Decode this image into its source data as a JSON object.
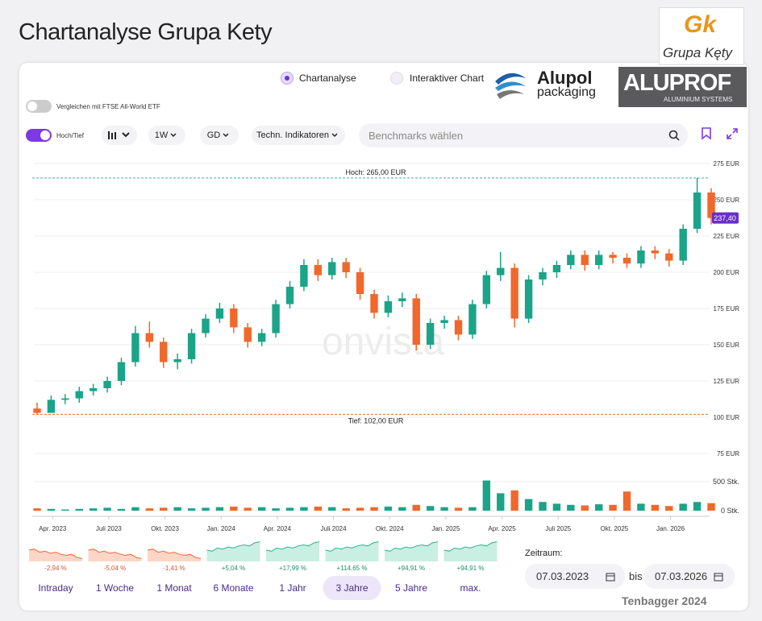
{
  "header": {
    "title": "Chartanalyse Grupa Kety"
  },
  "logos": {
    "gk_mark": "Gk",
    "gk_name": "Grupa Kęty",
    "alupol": "Alupol",
    "alupol_sub": "packaging",
    "aluprof": "ALUPROF",
    "aluprof_sub": "ALUMINIUM SYSTEMS"
  },
  "controls": {
    "radio_1": "Chartanalyse",
    "radio_2": "Interaktiver Chart",
    "compare": "Vergleichen mit FTSE All-World ETF",
    "high_low": "Hoch/Tief",
    "interval": "1W",
    "average": "GD",
    "indicators": "Techn. Indikatoren",
    "search": "Benchmarks wählen"
  },
  "chart_data": {
    "type": "candlestick",
    "watermark": "onvista",
    "x": [
      0,
      0.75,
      1.5,
      2.25,
      3,
      3.75,
      4.5,
      5.25,
      6,
      6.75,
      7.5,
      8.25,
      9,
      9.75,
      10.5,
      11.25,
      12,
      12.75,
      13.5,
      14.25,
      15,
      15.75,
      16.5,
      17.25,
      18,
      18.75,
      19.5,
      20.25,
      21,
      21.75,
      22.5,
      23.25,
      24,
      24.75,
      25.5,
      26.25,
      27,
      27.75,
      28.5,
      29.25,
      30,
      30.75,
      31.5,
      32.25,
      33,
      33.75,
      34.5,
      35.25,
      36
    ],
    "open": [
      106,
      103,
      112,
      113,
      118,
      120,
      125,
      138,
      158,
      152,
      138,
      140,
      158,
      168,
      175,
      162,
      152,
      158,
      178,
      190,
      205,
      198,
      207,
      200,
      185,
      172,
      180,
      182,
      150,
      165,
      167,
      157,
      178,
      198,
      203,
      168,
      195,
      200,
      205,
      212,
      205,
      212,
      210,
      206,
      215,
      213,
      208,
      230,
      255
    ],
    "high": [
      110,
      115,
      116,
      121,
      123,
      128,
      141,
      163,
      166,
      155,
      144,
      161,
      171,
      179,
      178,
      165,
      161,
      181,
      194,
      209,
      209,
      210,
      210,
      203,
      188,
      184,
      186,
      185,
      168,
      170,
      170,
      181,
      201,
      214,
      206,
      198,
      203,
      208,
      215,
      215,
      215,
      214,
      213,
      218,
      218,
      216,
      233,
      265,
      258
    ],
    "low": [
      102,
      103,
      109,
      110,
      115,
      117,
      122,
      135,
      148,
      134,
      133,
      137,
      155,
      165,
      158,
      148,
      149,
      155,
      175,
      187,
      194,
      195,
      196,
      181,
      168,
      169,
      176,
      146,
      147,
      161,
      153,
      154,
      175,
      194,
      162,
      165,
      191,
      196,
      202,
      201,
      202,
      206,
      203,
      203,
      209,
      204,
      205,
      227,
      233
    ],
    "close": [
      103,
      112,
      113,
      118,
      120,
      125,
      138,
      158,
      152,
      138,
      140,
      158,
      168,
      175,
      162,
      152,
      158,
      178,
      190,
      205,
      198,
      207,
      200,
      185,
      172,
      180,
      182,
      150,
      165,
      167,
      157,
      178,
      198,
      203,
      168,
      195,
      200,
      205,
      212,
      205,
      212,
      210,
      206,
      215,
      213,
      208,
      230,
      255,
      237.4
    ],
    "volume": [
      40,
      30,
      20,
      30,
      40,
      50,
      30,
      60,
      40,
      50,
      60,
      40,
      50,
      60,
      70,
      50,
      60,
      40,
      50,
      60,
      70,
      60,
      40,
      50,
      60,
      70,
      60,
      100,
      80,
      60,
      50,
      60,
      520,
      300,
      350,
      200,
      150,
      120,
      100,
      90,
      110,
      100,
      330,
      120,
      100,
      80,
      120,
      150,
      130
    ],
    "up_color": "#1ba487",
    "down_color": "#f0682b",
    "xlim": [
      0,
      36
    ],
    "xticks": [
      {
        "value": 1,
        "label": "Apr. 2023"
      },
      {
        "value": 4,
        "label": "Juli 2023"
      },
      {
        "value": 7,
        "label": "Okt. 2023"
      },
      {
        "value": 10,
        "label": "Jan. 2024"
      },
      {
        "value": 13,
        "label": "Apr. 2024"
      },
      {
        "value": 16,
        "label": "Juli 2024"
      },
      {
        "value": 19,
        "label": "Okt. 2024"
      },
      {
        "value": 22,
        "label": "Jan. 2025"
      },
      {
        "value": 25,
        "label": "Apr. 2025"
      },
      {
        "value": 28,
        "label": "Juli 2025"
      },
      {
        "value": 31,
        "label": "Okt. 2025"
      },
      {
        "value": 34,
        "label": "Jan. 2026"
      }
    ],
    "ylim": [
      75,
      275
    ],
    "yticks": [
      {
        "value": 75,
        "label": "75 EUR"
      },
      {
        "value": 100,
        "label": "100 EUR"
      },
      {
        "value": 125,
        "label": "125 EUR"
      },
      {
        "value": 150,
        "label": "150 EUR"
      },
      {
        "value": 175,
        "label": "175 EUR"
      },
      {
        "value": 200,
        "label": "200 EUR"
      },
      {
        "value": 225,
        "label": "225 EUR"
      },
      {
        "value": 250,
        "label": "250 EUR"
      },
      {
        "value": 275,
        "label": "275 EUR"
      }
    ],
    "volume_lim": [
      0,
      600
    ],
    "volume_ticks": [
      {
        "value": 0,
        "label": "0 Stk."
      },
      {
        "value": 500,
        "label": "500 Stk."
      }
    ],
    "high_line": {
      "value": 265,
      "label": "Hoch: 265,00 EUR"
    },
    "low_line": {
      "value": 102,
      "label": "Tief: 102,00 EUR"
    },
    "last_price": {
      "value": 237.4,
      "label": "237,40"
    },
    "grid": true
  },
  "periods": [
    {
      "name": "Intraday",
      "change": {
        "value": -2.94,
        "label": "-2,94 %"
      }
    },
    {
      "name": "1 Woche",
      "change": {
        "value": -5.04,
        "label": "-5,04 %"
      }
    },
    {
      "name": "1 Monat",
      "change": {
        "value": -1.41,
        "label": "-1,41 %"
      }
    },
    {
      "name": "6 Monate",
      "change": {
        "value": 5.04,
        "label": "+5,04 %"
      }
    },
    {
      "name": "1 Jahr",
      "change": {
        "value": 17.99,
        "label": "+17,99 %"
      }
    },
    {
      "name": "3 Jahre",
      "change": {
        "value": 114.65,
        "label": "+114,65 %"
      }
    },
    {
      "name": "5 Jahre",
      "change": {
        "value": 94.91,
        "label": "+94,91 %"
      }
    },
    {
      "name": "max.",
      "change": {
        "value": 94.91,
        "label": "+94,91 %"
      }
    }
  ],
  "range": {
    "label": "Zeitraum:",
    "from": "07.03.2023",
    "sep": "bis",
    "to": "07.03.2026"
  },
  "footer": "Tenbagger 2024"
}
